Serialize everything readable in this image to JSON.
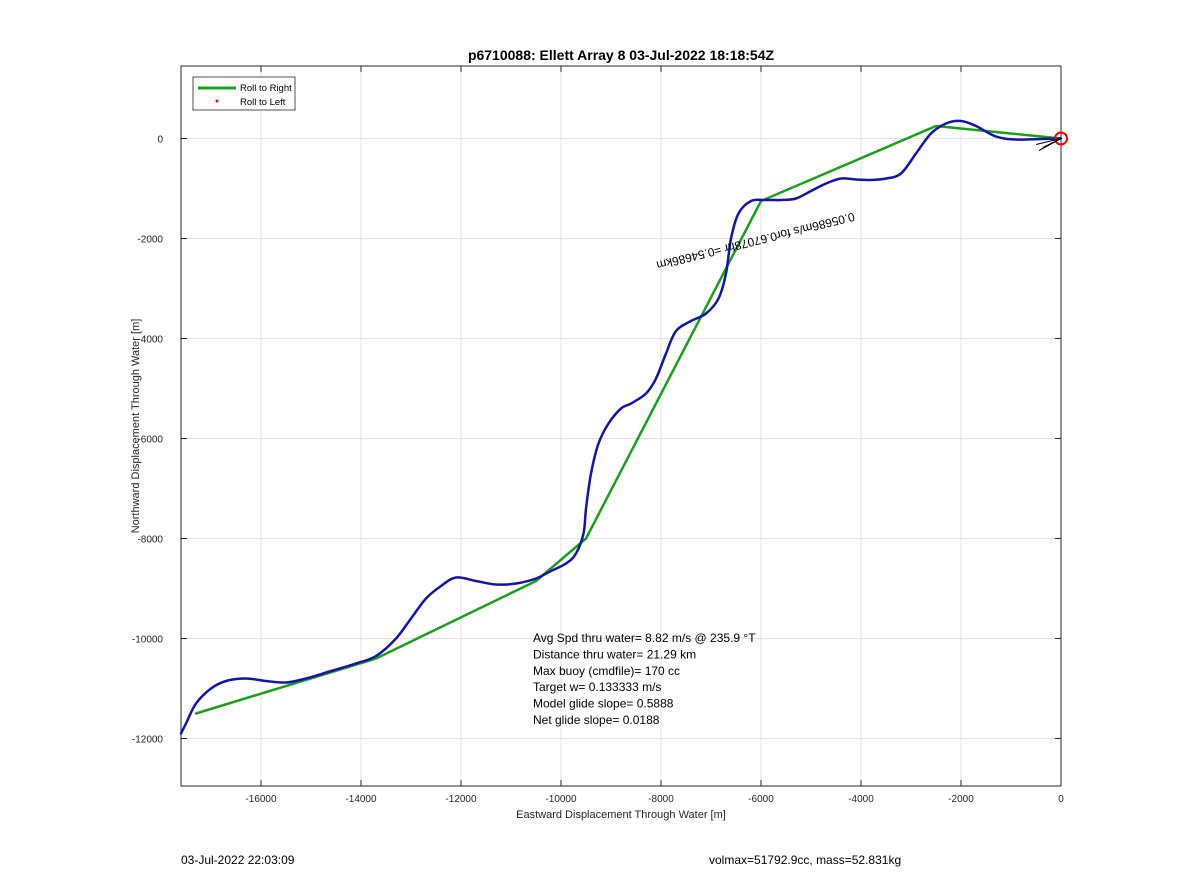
{
  "chart_data": {
    "type": "line",
    "title": "p6710088: Ellett Array 8 03-Jul-2022 18:18:54Z",
    "xlabel": "Eastward Displacement Through Water [m]",
    "ylabel": "Northward Displacement Through Water [m]",
    "xlim": [
      -17600,
      0
    ],
    "ylim": [
      -12950,
      1450
    ],
    "xticks": [
      -16000,
      -14000,
      -12000,
      -10000,
      -8000,
      -6000,
      -4000,
      -2000,
      0
    ],
    "yticks": [
      0,
      -2000,
      -4000,
      -6000,
      -8000,
      -10000,
      -12000
    ],
    "grid": true,
    "legend": {
      "position": "top-left",
      "entries": [
        {
          "label": "Roll to Right",
          "color": "#1aa01a",
          "style": "line"
        },
        {
          "label": "Roll to Left",
          "color": "#ff0000",
          "style": "dot"
        }
      ]
    },
    "series": [
      {
        "name": "Roll to Right",
        "color": "#1aa01a",
        "points": [
          [
            0,
            0
          ],
          [
            -2500,
            250
          ],
          [
            -6000,
            -1250
          ],
          [
            -9500,
            -8000
          ],
          [
            -10500,
            -8850
          ],
          [
            -13700,
            -10400
          ],
          [
            -17300,
            -11500
          ]
        ]
      },
      {
        "color": "#1414a8",
        "points": [
          [
            0,
            0
          ],
          [
            -400,
            -10
          ],
          [
            -900,
            -20
          ],
          [
            -1300,
            40
          ],
          [
            -1700,
            250
          ],
          [
            -2000,
            350
          ],
          [
            -2300,
            300
          ],
          [
            -2600,
            100
          ],
          [
            -2900,
            -300
          ],
          [
            -3200,
            -700
          ],
          [
            -3500,
            -800
          ],
          [
            -3800,
            -830
          ],
          [
            -4100,
            -820
          ],
          [
            -4400,
            -800
          ],
          [
            -4700,
            -900
          ],
          [
            -5000,
            -1050
          ],
          [
            -5300,
            -1200
          ],
          [
            -5600,
            -1230
          ],
          [
            -5900,
            -1230
          ],
          [
            -6200,
            -1250
          ],
          [
            -6450,
            -1500
          ],
          [
            -6600,
            -2000
          ],
          [
            -6700,
            -2700
          ],
          [
            -6850,
            -3200
          ],
          [
            -7100,
            -3500
          ],
          [
            -7400,
            -3650
          ],
          [
            -7700,
            -3850
          ],
          [
            -7900,
            -4300
          ],
          [
            -8100,
            -4800
          ],
          [
            -8300,
            -5100
          ],
          [
            -8600,
            -5300
          ],
          [
            -8800,
            -5400
          ],
          [
            -9050,
            -5700
          ],
          [
            -9250,
            -6100
          ],
          [
            -9400,
            -6700
          ],
          [
            -9500,
            -7400
          ],
          [
            -9550,
            -7900
          ],
          [
            -9700,
            -8300
          ],
          [
            -9900,
            -8500
          ],
          [
            -10200,
            -8650
          ],
          [
            -10500,
            -8800
          ],
          [
            -10900,
            -8900
          ],
          [
            -11300,
            -8920
          ],
          [
            -11700,
            -8850
          ],
          [
            -12100,
            -8780
          ],
          [
            -12400,
            -8950
          ],
          [
            -12700,
            -9200
          ],
          [
            -13000,
            -9600
          ],
          [
            -13300,
            -10000
          ],
          [
            -13700,
            -10350
          ],
          [
            -14100,
            -10500
          ],
          [
            -14600,
            -10650
          ],
          [
            -15100,
            -10800
          ],
          [
            -15500,
            -10880
          ],
          [
            -15900,
            -10850
          ],
          [
            -16300,
            -10800
          ],
          [
            -16700,
            -10850
          ],
          [
            -17000,
            -11000
          ],
          [
            -17300,
            -11300
          ],
          [
            -17500,
            -11700
          ],
          [
            -17600,
            -11900
          ]
        ]
      }
    ],
    "end_marker": {
      "x": 0,
      "y": 0,
      "color": "#ff0000"
    },
    "annotations": {
      "current_label": "0.05686m/s for0.67078hr =0.54686km",
      "stats": [
        "Avg Spd thru water=  8.82 m/s @ 235.9 °T",
        "Distance thru water= 21.29 km",
        "Max buoy (cmdfile)= 170 cc",
        "Target w= 0.133333 m/s",
        "Model glide slope= 0.5888",
        "Net glide slope= 0.0188"
      ]
    }
  },
  "footer": {
    "timestamp": "03-Jul-2022 22:03:09",
    "mass_info": "volmax=51792.9cc, mass=52.831kg"
  }
}
